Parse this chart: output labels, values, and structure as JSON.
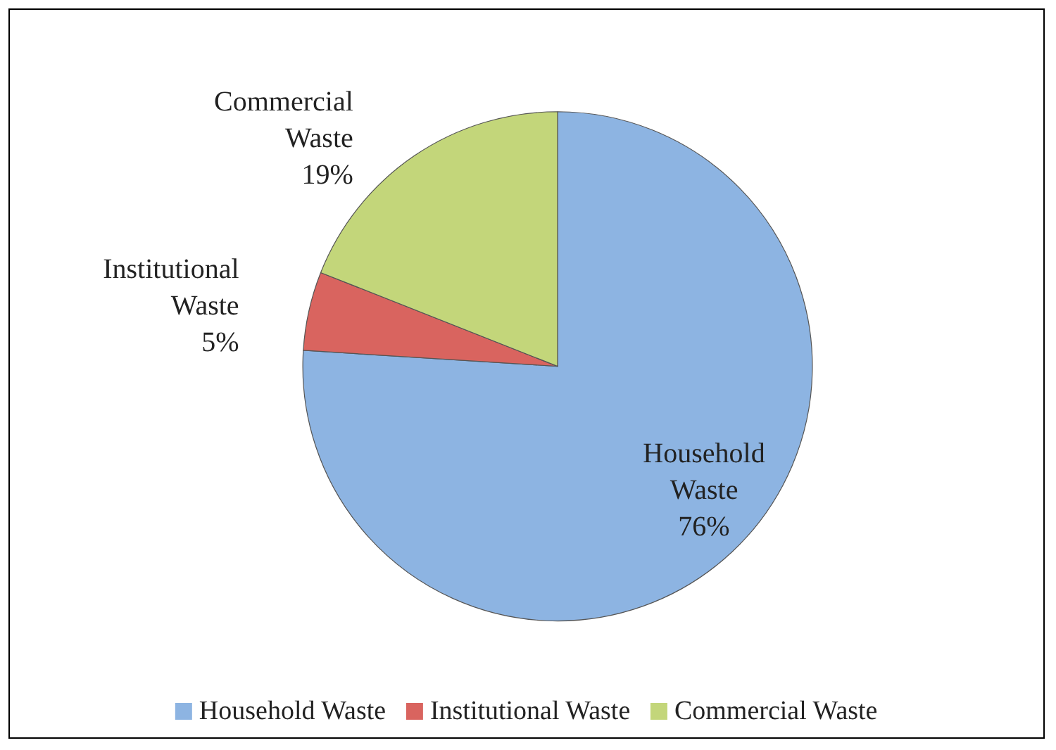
{
  "chart_data": {
    "type": "pie",
    "categories": [
      "Household Waste",
      "Institutional Waste",
      "Commercial Waste"
    ],
    "values": [
      76,
      5,
      19
    ],
    "value_labels": [
      "76%",
      "5%",
      "19%"
    ],
    "colors": [
      "#8db4e2",
      "#d9645f",
      "#c3d67a"
    ],
    "legend": "bottom"
  }
}
